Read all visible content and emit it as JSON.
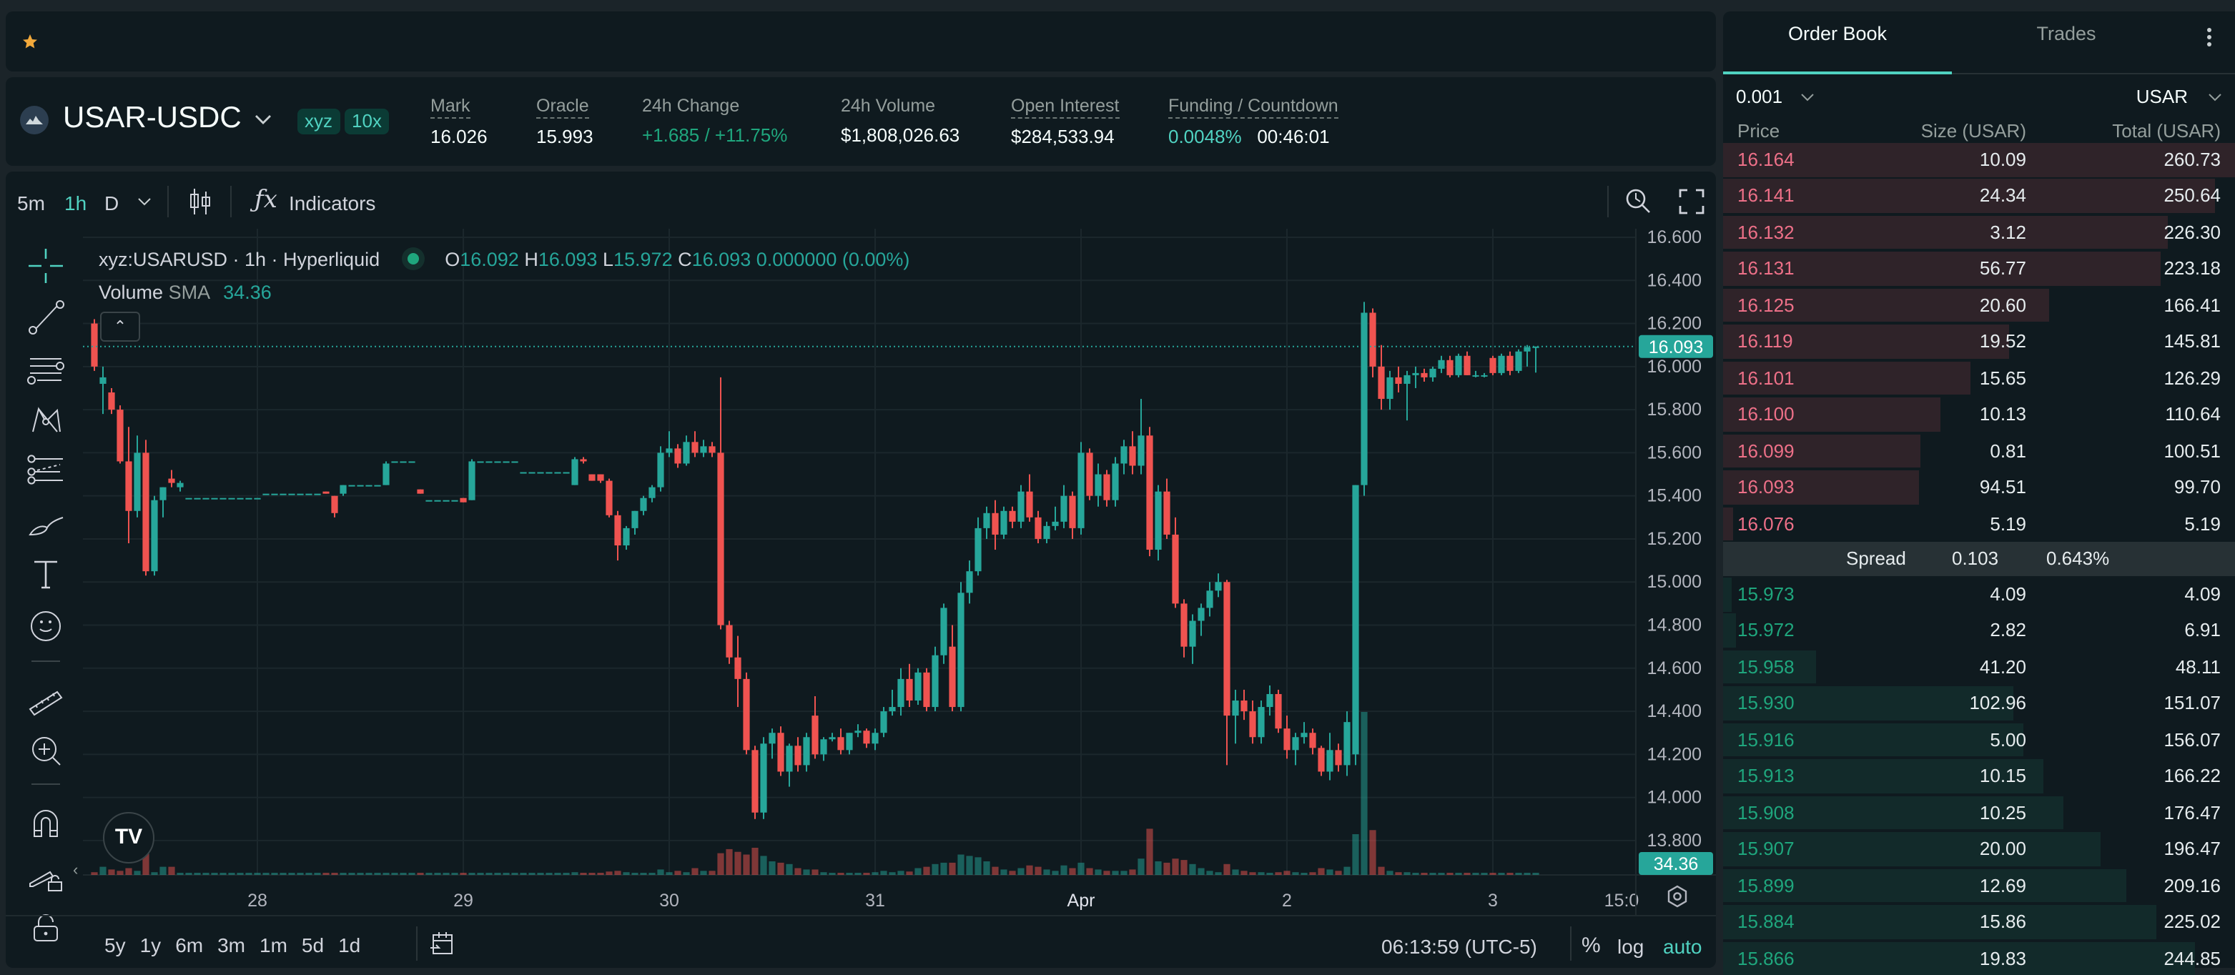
{
  "topbar": {
    "favorite_icon": "star-icon"
  },
  "market": {
    "pair": "USAR-USDC",
    "dex_badge": "xyz",
    "leverage_badge": "10x",
    "stats": [
      {
        "label": "Mark",
        "value": "16.026"
      },
      {
        "label": "Oracle",
        "value": "15.993"
      },
      {
        "label": "24h Change",
        "value": "+1.685 / +11.75%"
      },
      {
        "label": "24h Volume",
        "value": "$1,808,026.63"
      },
      {
        "label": "Open Interest",
        "value": "$284,533.94"
      },
      {
        "label": "Funding / Countdown",
        "value": "0.0048%",
        "value2": "00:46:01"
      }
    ]
  },
  "toolbar": {
    "intervals": [
      "5m",
      "1h",
      "D"
    ],
    "active_interval": "1h",
    "indicators_label": "Indicators"
  },
  "legend": {
    "symbol": "xyz:USARUSD · 1h · Hyperliquid",
    "o_label": "O",
    "o": "16.092",
    "h_label": "H",
    "h": "16.093",
    "l_label": "L",
    "l": "15.972",
    "c_label": "C",
    "c": "16.093",
    "change": "0.000000 (0.00%)",
    "volume_label": "Volume",
    "sma_label": "SMA",
    "sma_value": "34.36"
  },
  "bottombar": {
    "ranges": [
      "5y",
      "1y",
      "6m",
      "3m",
      "1m",
      "5d",
      "1d"
    ],
    "clock": "06:13:59 (UTC-5)",
    "percent": "%",
    "log": "log",
    "auto": "auto"
  },
  "colors": {
    "up": "#26a69a",
    "down": "#ef5350",
    "accent": "#50d2c1",
    "ask_text": "#ed7088",
    "bid_text": "#1fa67d"
  },
  "chart_data": {
    "type": "candlestick",
    "interval": "1h",
    "y_ticks": [
      "16.600",
      "16.400",
      "16.200",
      "16.000",
      "15.800",
      "15.600",
      "15.400",
      "15.200",
      "15.000",
      "14.800",
      "14.600",
      "14.400",
      "14.200",
      "14.000",
      "13.800"
    ],
    "ylim": [
      13.8,
      16.6
    ],
    "x_ticks": [
      "28",
      "29",
      "30",
      "31",
      "Apr",
      "2",
      "3",
      "15:0"
    ],
    "last_price": "16.093",
    "volume_sma": "34.36",
    "grid": true,
    "candles_ohlcv": [
      [
        16.2,
        16.22,
        15.98,
        16.0,
        20
      ],
      [
        15.92,
        16.0,
        15.78,
        15.95,
        60
      ],
      [
        15.88,
        15.9,
        15.78,
        15.8,
        40
      ],
      [
        15.8,
        15.82,
        15.55,
        15.56,
        30
      ],
      [
        15.56,
        15.72,
        15.18,
        15.33,
        50
      ],
      [
        15.33,
        15.68,
        15.3,
        15.6,
        30
      ],
      [
        15.6,
        15.66,
        15.03,
        15.05,
        190
      ],
      [
        15.05,
        15.4,
        15.03,
        15.38,
        20
      ],
      [
        15.38,
        15.44,
        15.3,
        15.44,
        60
      ],
      [
        15.48,
        15.52,
        15.44,
        15.46,
        60
      ],
      [
        15.44,
        15.47,
        15.42,
        15.46,
        10
      ],
      [
        15.39,
        15.39,
        15.39,
        15.39,
        8
      ],
      [
        15.39,
        15.39,
        15.39,
        15.39,
        8
      ],
      [
        15.39,
        15.39,
        15.39,
        15.39,
        8
      ],
      [
        15.39,
        15.39,
        15.39,
        15.39,
        8
      ],
      [
        15.39,
        15.39,
        15.39,
        15.39,
        8
      ],
      [
        15.39,
        15.39,
        15.39,
        15.39,
        8
      ],
      [
        15.39,
        15.39,
        15.39,
        15.39,
        8
      ],
      [
        15.39,
        15.39,
        15.39,
        15.39,
        8
      ],
      [
        15.39,
        15.39,
        15.39,
        15.39,
        8
      ],
      [
        15.41,
        15.41,
        15.41,
        15.41,
        8
      ],
      [
        15.41,
        15.41,
        15.41,
        15.41,
        8
      ],
      [
        15.41,
        15.41,
        15.41,
        15.41,
        8
      ],
      [
        15.41,
        15.41,
        15.41,
        15.41,
        8
      ],
      [
        15.41,
        15.41,
        15.41,
        15.41,
        8
      ],
      [
        15.41,
        15.41,
        15.41,
        15.41,
        8
      ],
      [
        15.41,
        15.41,
        15.41,
        15.41,
        8
      ],
      [
        15.42,
        15.42,
        15.41,
        15.41,
        8
      ],
      [
        15.4,
        15.4,
        15.3,
        15.32,
        15
      ],
      [
        15.41,
        15.45,
        15.4,
        15.45,
        10
      ],
      [
        15.45,
        15.45,
        15.45,
        15.45,
        8
      ],
      [
        15.45,
        15.45,
        15.45,
        15.45,
        8
      ],
      [
        15.45,
        15.45,
        15.45,
        15.45,
        8
      ],
      [
        15.45,
        15.45,
        15.45,
        15.45,
        8
      ],
      [
        15.45,
        15.56,
        15.45,
        15.55,
        15
      ],
      [
        15.56,
        15.56,
        15.56,
        15.56,
        8
      ],
      [
        15.56,
        15.56,
        15.56,
        15.56,
        8
      ],
      [
        15.56,
        15.56,
        15.56,
        15.56,
        8
      ],
      [
        15.43,
        15.43,
        15.41,
        15.41,
        8
      ],
      [
        15.38,
        15.38,
        15.38,
        15.38,
        8
      ],
      [
        15.38,
        15.38,
        15.38,
        15.38,
        8
      ],
      [
        15.38,
        15.38,
        15.38,
        15.38,
        8
      ],
      [
        15.38,
        15.38,
        15.38,
        15.38,
        8
      ],
      [
        15.39,
        15.39,
        15.37,
        15.37,
        8
      ],
      [
        15.38,
        15.57,
        15.38,
        15.56,
        15
      ],
      [
        15.56,
        15.56,
        15.56,
        15.56,
        8
      ],
      [
        15.56,
        15.56,
        15.56,
        15.56,
        8
      ],
      [
        15.56,
        15.56,
        15.56,
        15.56,
        8
      ],
      [
        15.56,
        15.56,
        15.56,
        15.56,
        8
      ],
      [
        15.56,
        15.56,
        15.56,
        15.56,
        8
      ],
      [
        15.51,
        15.51,
        15.51,
        15.51,
        8
      ],
      [
        15.51,
        15.51,
        15.51,
        15.51,
        8
      ],
      [
        15.51,
        15.51,
        15.51,
        15.51,
        8
      ],
      [
        15.51,
        15.51,
        15.51,
        15.51,
        8
      ],
      [
        15.51,
        15.51,
        15.51,
        15.51,
        8
      ],
      [
        15.51,
        15.51,
        15.51,
        15.51,
        8
      ],
      [
        15.45,
        15.58,
        15.45,
        15.57,
        20
      ],
      [
        15.57,
        15.58,
        15.55,
        15.56,
        8
      ],
      [
        15.5,
        15.5,
        15.47,
        15.47,
        10
      ],
      [
        15.5,
        15.5,
        15.46,
        15.47,
        8
      ],
      [
        15.47,
        15.48,
        15.3,
        15.31,
        25
      ],
      [
        15.31,
        15.33,
        15.1,
        15.17,
        30
      ],
      [
        15.17,
        15.26,
        15.15,
        15.25,
        20
      ],
      [
        15.25,
        15.33,
        15.22,
        15.33,
        15
      ],
      [
        15.33,
        15.4,
        15.31,
        15.39,
        15
      ],
      [
        15.39,
        15.45,
        15.37,
        15.44,
        10
      ],
      [
        15.44,
        15.63,
        15.42,
        15.6,
        40
      ],
      [
        15.6,
        15.7,
        15.58,
        15.62,
        20
      ],
      [
        15.62,
        15.64,
        15.53,
        15.55,
        30
      ],
      [
        15.55,
        15.68,
        15.54,
        15.65,
        20
      ],
      [
        15.65,
        15.7,
        15.58,
        15.6,
        50
      ],
      [
        15.6,
        15.66,
        15.58,
        15.63,
        30
      ],
      [
        15.63,
        15.65,
        15.58,
        15.6,
        30
      ],
      [
        15.6,
        15.95,
        14.78,
        14.8,
        160
      ],
      [
        14.8,
        14.82,
        14.62,
        14.65,
        190
      ],
      [
        14.65,
        14.75,
        14.42,
        14.55,
        170
      ],
      [
        14.55,
        14.58,
        14.2,
        14.22,
        150
      ],
      [
        14.22,
        14.24,
        13.9,
        13.93,
        200
      ],
      [
        13.93,
        14.28,
        13.9,
        14.25,
        140
      ],
      [
        14.25,
        14.32,
        14.18,
        14.3,
        100
      ],
      [
        14.3,
        14.33,
        14.1,
        14.12,
        90
      ],
      [
        14.12,
        14.25,
        14.05,
        14.24,
        80
      ],
      [
        14.24,
        14.28,
        14.12,
        14.15,
        50
      ],
      [
        14.15,
        14.3,
        14.12,
        14.28,
        40
      ],
      [
        14.38,
        14.47,
        14.18,
        14.2,
        40
      ],
      [
        14.2,
        14.28,
        14.17,
        14.27,
        20
      ],
      [
        14.27,
        14.3,
        14.26,
        14.28,
        15
      ],
      [
        14.28,
        14.32,
        14.2,
        14.22,
        10
      ],
      [
        14.22,
        14.3,
        14.2,
        14.3,
        10
      ],
      [
        14.3,
        14.34,
        14.28,
        14.31,
        10
      ],
      [
        14.31,
        14.32,
        14.23,
        14.25,
        15
      ],
      [
        14.25,
        14.32,
        14.22,
        14.3,
        20
      ],
      [
        14.3,
        14.42,
        14.28,
        14.4,
        30
      ],
      [
        14.4,
        14.5,
        14.38,
        14.42,
        20
      ],
      [
        14.42,
        14.6,
        14.38,
        14.55,
        30
      ],
      [
        14.55,
        14.62,
        14.42,
        14.45,
        25
      ],
      [
        14.45,
        14.6,
        14.43,
        14.58,
        50
      ],
      [
        14.58,
        14.6,
        14.4,
        14.42,
        60
      ],
      [
        14.42,
        14.7,
        14.4,
        14.66,
        80
      ],
      [
        14.66,
        14.9,
        14.62,
        14.88,
        90
      ],
      [
        14.7,
        14.8,
        14.4,
        14.42,
        90
      ],
      [
        14.42,
        15.0,
        14.4,
        14.95,
        150
      ],
      [
        14.95,
        15.1,
        14.9,
        15.05,
        140
      ],
      [
        15.05,
        15.3,
        15.03,
        15.25,
        130
      ],
      [
        15.25,
        15.35,
        15.2,
        15.32,
        100
      ],
      [
        15.32,
        15.38,
        15.15,
        15.22,
        60
      ],
      [
        15.22,
        15.35,
        15.2,
        15.33,
        40
      ],
      [
        15.33,
        15.35,
        15.25,
        15.28,
        30
      ],
      [
        15.28,
        15.45,
        15.25,
        15.42,
        50
      ],
      [
        15.42,
        15.5,
        15.28,
        15.3,
        70
      ],
      [
        15.3,
        15.33,
        15.18,
        15.2,
        60
      ],
      [
        15.2,
        15.28,
        15.18,
        15.26,
        40
      ],
      [
        15.26,
        15.35,
        15.24,
        15.28,
        30
      ],
      [
        15.28,
        15.45,
        15.25,
        15.4,
        70
      ],
      [
        15.4,
        15.42,
        15.2,
        15.25,
        50
      ],
      [
        15.25,
        15.65,
        15.22,
        15.6,
        90
      ],
      [
        15.6,
        15.62,
        15.38,
        15.4,
        50
      ],
      [
        15.4,
        15.55,
        15.35,
        15.5,
        40
      ],
      [
        15.5,
        15.52,
        15.35,
        15.38,
        30
      ],
      [
        15.38,
        15.58,
        15.35,
        15.55,
        30
      ],
      [
        15.55,
        15.66,
        15.5,
        15.63,
        30
      ],
      [
        15.63,
        15.7,
        15.5,
        15.54,
        40
      ],
      [
        15.54,
        15.85,
        15.5,
        15.68,
        120
      ],
      [
        15.68,
        15.72,
        15.12,
        15.15,
        340
      ],
      [
        15.15,
        15.45,
        15.1,
        15.42,
        100
      ],
      [
        15.42,
        15.48,
        15.2,
        15.22,
        90
      ],
      [
        15.22,
        15.3,
        14.88,
        14.9,
        120
      ],
      [
        14.9,
        14.92,
        14.65,
        14.7,
        110
      ],
      [
        14.7,
        14.85,
        14.62,
        14.82,
        80
      ],
      [
        14.82,
        14.9,
        14.75,
        14.88,
        50
      ],
      [
        14.88,
        15.0,
        14.84,
        14.96,
        30
      ],
      [
        14.96,
        15.04,
        14.93,
        15.0,
        20
      ],
      [
        15.0,
        15.01,
        14.15,
        14.38,
        80
      ],
      [
        14.38,
        14.5,
        14.25,
        14.45,
        40
      ],
      [
        14.45,
        14.5,
        14.36,
        14.4,
        30
      ],
      [
        14.4,
        14.45,
        14.25,
        14.28,
        20
      ],
      [
        14.28,
        14.45,
        14.25,
        14.42,
        20
      ],
      [
        14.42,
        14.52,
        14.38,
        14.48,
        15
      ],
      [
        14.48,
        14.5,
        14.3,
        14.32,
        20
      ],
      [
        14.32,
        14.38,
        14.18,
        14.22,
        30
      ],
      [
        14.22,
        14.3,
        14.15,
        14.28,
        20
      ],
      [
        14.28,
        14.35,
        14.25,
        14.3,
        10
      ],
      [
        14.3,
        14.32,
        14.2,
        14.23,
        20
      ],
      [
        14.23,
        14.24,
        14.1,
        14.12,
        50
      ],
      [
        14.12,
        14.3,
        14.08,
        14.22,
        40
      ],
      [
        14.22,
        14.25,
        14.12,
        14.15,
        30
      ],
      [
        14.15,
        14.4,
        14.1,
        14.35,
        60
      ],
      [
        14.2,
        15.45,
        14.15,
        15.45,
        300
      ],
      [
        15.45,
        16.3,
        15.4,
        16.25,
        1200
      ],
      [
        16.25,
        16.27,
        15.95,
        16.0,
        330
      ],
      [
        16.0,
        16.1,
        15.8,
        15.85,
        60
      ],
      [
        15.85,
        15.98,
        15.8,
        15.95,
        30
      ],
      [
        15.95,
        16.0,
        15.88,
        15.92,
        20
      ],
      [
        15.92,
        15.98,
        15.75,
        15.96,
        20
      ],
      [
        15.96,
        16.0,
        15.9,
        15.97,
        15
      ],
      [
        15.97,
        15.99,
        15.93,
        15.95,
        10
      ],
      [
        15.95,
        16.0,
        15.93,
        15.99,
        15
      ],
      [
        15.99,
        16.05,
        15.97,
        16.03,
        15
      ],
      [
        16.03,
        16.05,
        15.95,
        15.96,
        15
      ],
      [
        15.96,
        16.06,
        15.95,
        16.05,
        15
      ],
      [
        16.05,
        16.07,
        15.96,
        15.96,
        10
      ],
      [
        15.96,
        15.98,
        15.95,
        15.96,
        10
      ],
      [
        15.96,
        15.97,
        15.95,
        15.96,
        10
      ],
      [
        16.04,
        16.05,
        15.96,
        15.97,
        10
      ],
      [
        15.97,
        16.06,
        15.96,
        16.05,
        10
      ],
      [
        16.05,
        16.07,
        15.96,
        15.98,
        10
      ],
      [
        15.98,
        16.08,
        15.97,
        16.07,
        10
      ],
      [
        16.07,
        16.1,
        16.0,
        16.09,
        10
      ],
      [
        16.092,
        16.093,
        15.972,
        16.093,
        5
      ]
    ]
  },
  "orderbook": {
    "tabs": [
      "Order Book",
      "Trades"
    ],
    "active_tab": "Order Book",
    "tick_size": "0.001",
    "unit": "USAR",
    "headers": [
      "Price",
      "Size (USAR)",
      "Total (USAR)"
    ],
    "asks": [
      [
        "16.164",
        "10.09",
        "260.73"
      ],
      [
        "16.141",
        "24.34",
        "250.64"
      ],
      [
        "16.132",
        "3.12",
        "226.30"
      ],
      [
        "16.131",
        "56.77",
        "223.18"
      ],
      [
        "16.125",
        "20.60",
        "166.41"
      ],
      [
        "16.119",
        "19.52",
        "145.81"
      ],
      [
        "16.101",
        "15.65",
        "126.29"
      ],
      [
        "16.100",
        "10.13",
        "110.64"
      ],
      [
        "16.099",
        "0.81",
        "100.51"
      ],
      [
        "16.093",
        "94.51",
        "99.70"
      ],
      [
        "16.076",
        "5.19",
        "5.19"
      ]
    ],
    "spread": {
      "label": "Spread",
      "value": "0.103",
      "percent": "0.643%"
    },
    "bids": [
      [
        "15.973",
        "4.09",
        "4.09"
      ],
      [
        "15.972",
        "2.82",
        "6.91"
      ],
      [
        "15.958",
        "41.20",
        "48.11"
      ],
      [
        "15.930",
        "102.96",
        "151.07"
      ],
      [
        "15.916",
        "5.00",
        "156.07"
      ],
      [
        "15.913",
        "10.15",
        "166.22"
      ],
      [
        "15.908",
        "10.25",
        "176.47"
      ],
      [
        "15.907",
        "20.00",
        "196.47"
      ],
      [
        "15.899",
        "12.69",
        "209.16"
      ],
      [
        "15.884",
        "15.86",
        "225.02"
      ],
      [
        "15.866",
        "19.83",
        "244.85"
      ]
    ]
  }
}
